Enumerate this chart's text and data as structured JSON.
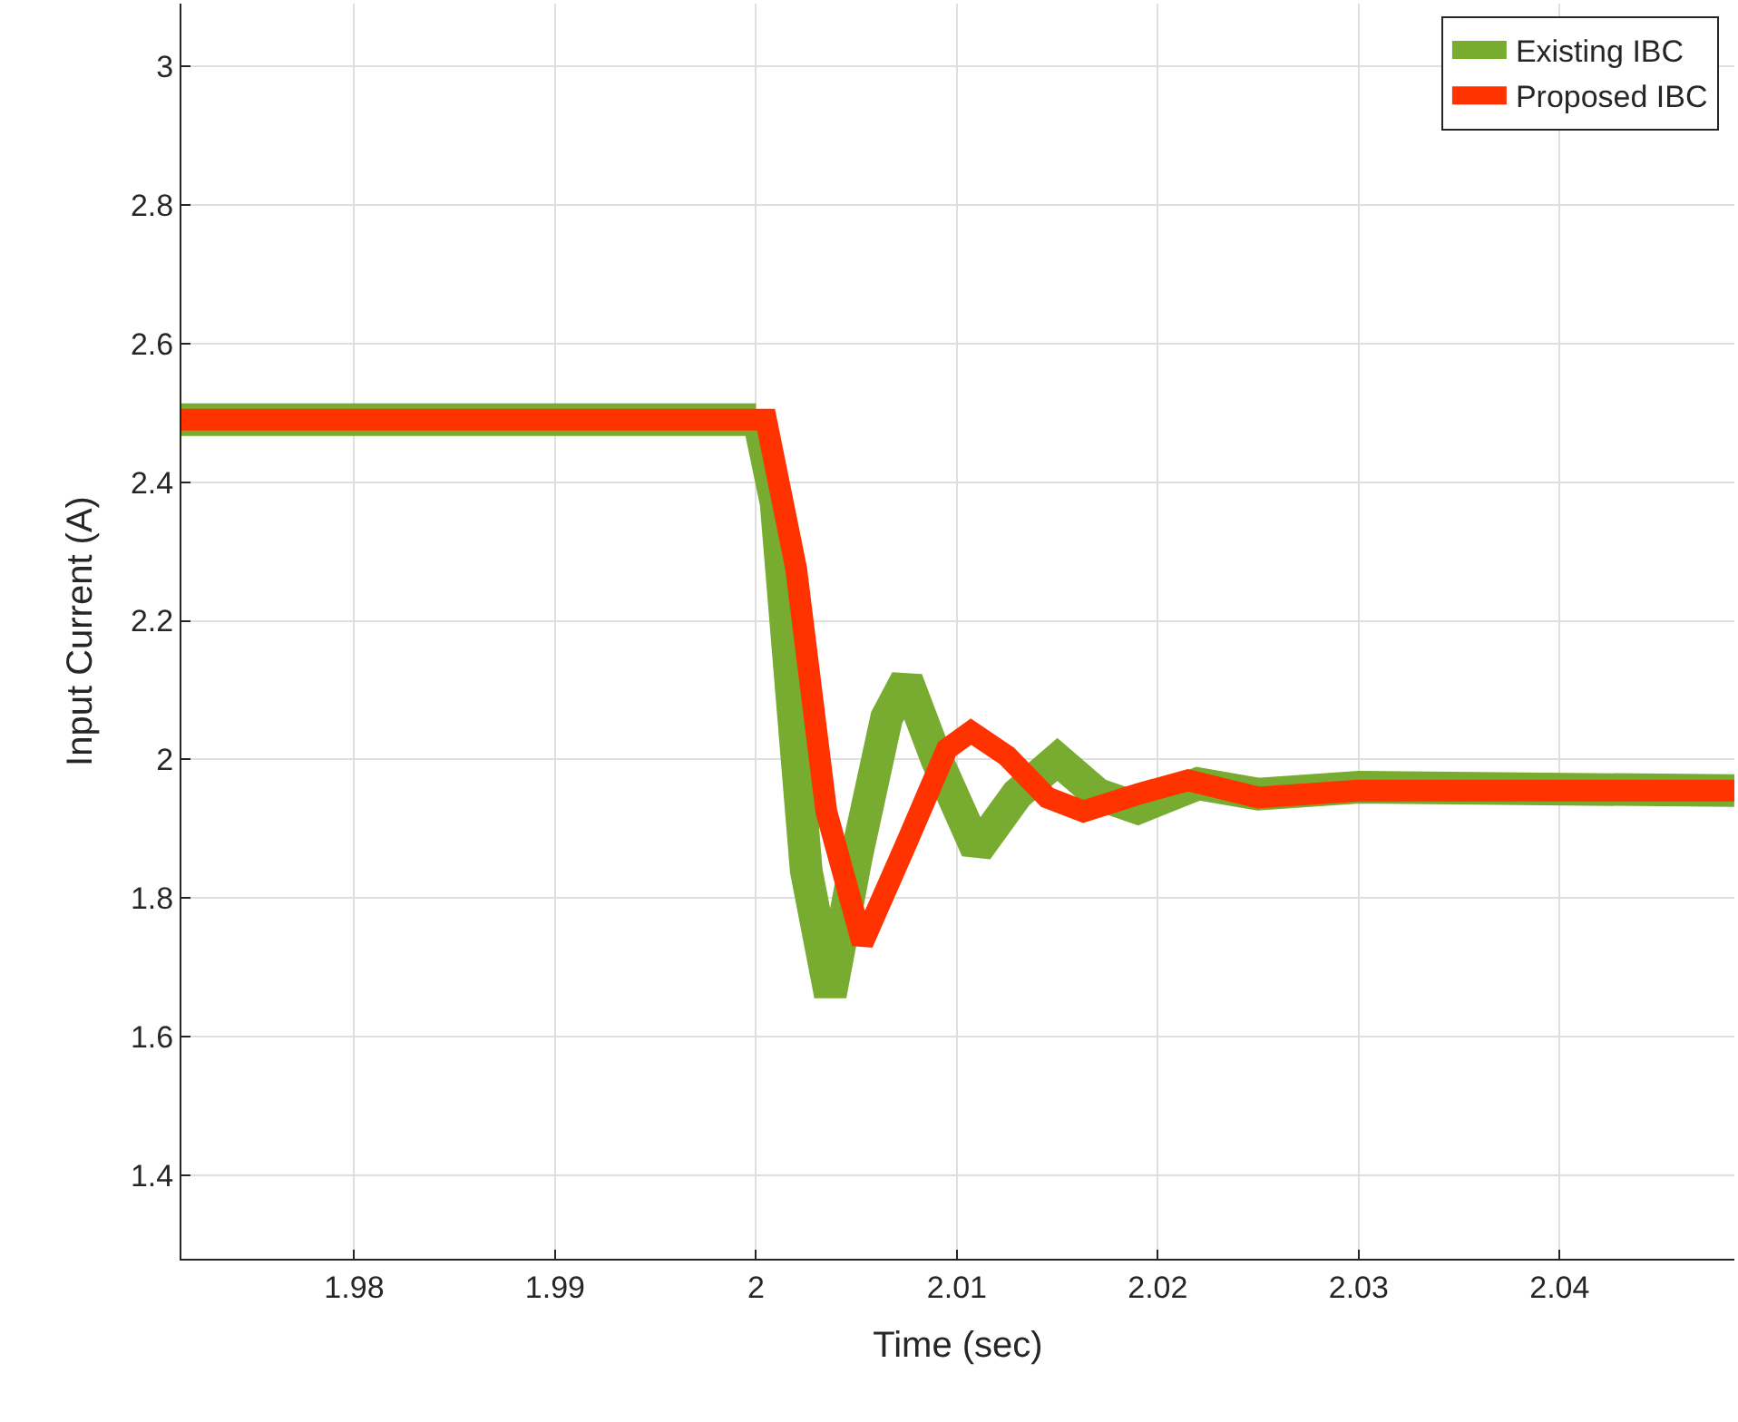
{
  "chart_data": {
    "type": "line",
    "xlabel": "Time (sec)",
    "ylabel": "Input Current (A)",
    "xlim": [
      1.9714,
      2.0487
    ],
    "xticks": [
      1.98,
      1.99,
      2,
      2.01,
      2.02,
      2.03,
      2.04
    ],
    "ylim": [
      1.28,
      3.09
    ],
    "yticks": [
      1.4,
      1.6,
      1.8,
      2,
      2.2,
      2.4,
      2.6,
      2.8,
      3
    ],
    "grid": true,
    "legend": "top right",
    "marker": "none",
    "line_style": "solid",
    "series": [
      {
        "name": "Existing IBC",
        "color": "#77ac30",
        "x": [
          1.9714,
          2.0,
          2.0001,
          2.001,
          2.0025,
          2.0037,
          2.005,
          2.0065,
          2.0075,
          2.009,
          2.011,
          2.013,
          2.015,
          2.017,
          2.019,
          2.022,
          2.025,
          2.03,
          2.0487
        ],
        "values": [
          2.49,
          2.49,
          2.495,
          2.37,
          1.84,
          1.66,
          1.86,
          2.06,
          2.115,
          2.0,
          1.87,
          1.95,
          2.0,
          1.95,
          1.93,
          1.965,
          1.95,
          1.96,
          1.955
        ]
      },
      {
        "name": "Proposed IBC",
        "color": "#ff3300",
        "x": [
          1.9714,
          2.0005,
          2.002,
          2.0035,
          2.0053,
          2.0075,
          2.0095,
          2.0107,
          2.0125,
          2.0145,
          2.0163,
          2.019,
          2.0215,
          2.025,
          2.03,
          2.0487
        ],
        "values": [
          2.49,
          2.49,
          2.275,
          1.925,
          1.735,
          1.88,
          2.015,
          2.04,
          2.005,
          1.945,
          1.925,
          1.95,
          1.97,
          1.945,
          1.955,
          1.955
        ]
      }
    ]
  }
}
